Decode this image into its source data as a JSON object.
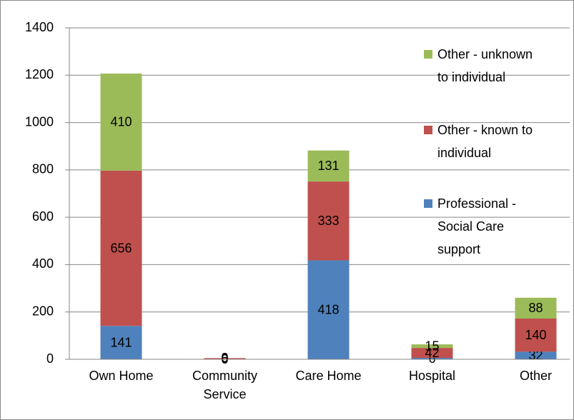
{
  "chart_data": {
    "type": "stacked_bar",
    "categories": [
      "Own Home",
      "Community Service",
      "Care Home",
      "Hospital",
      "Other"
    ],
    "series": [
      {
        "name": "Professional - Social Care support",
        "color": "#4f81bd",
        "values": [
          141,
          0,
          418,
          6,
          32
        ]
      },
      {
        "name": "Other - known to individual",
        "color": "#c0504d",
        "values": [
          656,
          5,
          333,
          42,
          140
        ]
      },
      {
        "name": "Other - unknown to individual",
        "color": "#9bbb59",
        "values": [
          410,
          0,
          131,
          15,
          88
        ]
      }
    ],
    "ylim": [
      0,
      1400
    ],
    "yticks": [
      0,
      200,
      400,
      600,
      800,
      1000,
      1200,
      1400
    ],
    "grid": true
  }
}
